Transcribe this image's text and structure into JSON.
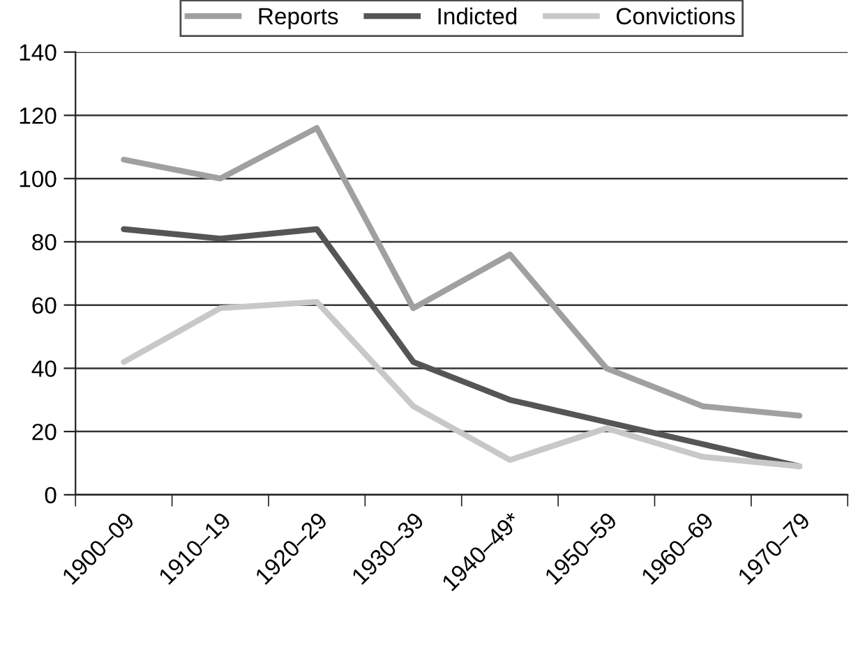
{
  "chart_data": {
    "type": "line",
    "categories": [
      "1900–09",
      "1910–19",
      "1920–29",
      "1930–39",
      "1940–49*",
      "1950–59",
      "1960–69",
      "1970–79"
    ],
    "series": [
      {
        "name": "Reports",
        "color": "#a0a0a0",
        "values": [
          106,
          100,
          116,
          59,
          76,
          40,
          28,
          25
        ]
      },
      {
        "name": "Indicted",
        "color": "#555555",
        "values": [
          84,
          81,
          84,
          42,
          30,
          23,
          16,
          9
        ]
      },
      {
        "name": "Convictions",
        "color": "#c8c8c8",
        "values": [
          42,
          59,
          61,
          28,
          11,
          21,
          12,
          9
        ]
      }
    ],
    "ylim": [
      0,
      140
    ],
    "yticks": [
      0,
      20,
      40,
      60,
      80,
      100,
      120,
      140
    ],
    "grid": "y",
    "legend": "top",
    "marker": "none",
    "line_style": "solid"
  }
}
